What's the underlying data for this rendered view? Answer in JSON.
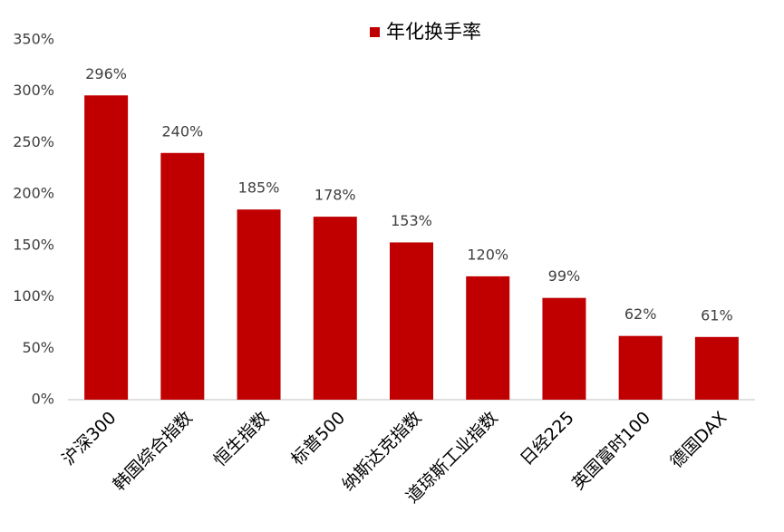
{
  "chart_data": {
    "type": "bar",
    "categories": [
      "沪深300",
      "韩国综合指数",
      "恒生指数",
      "标普500",
      "纳斯达克指数",
      "道琼斯工业指数",
      "日经225",
      "英国富时100",
      "德国DAX"
    ],
    "series": [
      {
        "name": "年化换手率",
        "color": "#c00000",
        "values": [
          296,
          240,
          185,
          178,
          153,
          120,
          99,
          62,
          61
        ],
        "value_labels": [
          "296%",
          "240%",
          "185%",
          "178%",
          "153%",
          "120%",
          "99%",
          "62%",
          "61%"
        ]
      }
    ],
    "ylim": [
      0,
      350
    ],
    "yticks": [
      {
        "value": 0,
        "label": "0%"
      },
      {
        "value": 50,
        "label": "50%"
      },
      {
        "value": 100,
        "label": "100%"
      },
      {
        "value": 150,
        "label": "150%"
      },
      {
        "value": 200,
        "label": "200%"
      },
      {
        "value": 250,
        "label": "250%"
      },
      {
        "value": 300,
        "label": "300%"
      },
      {
        "value": 350,
        "label": "350%"
      }
    ],
    "grid": false,
    "legend": "top"
  }
}
